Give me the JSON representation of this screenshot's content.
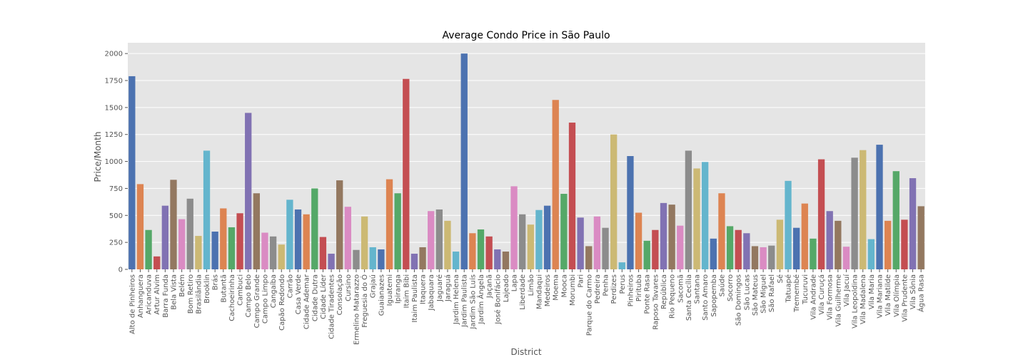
{
  "chart_data": {
    "type": "bar",
    "title": "Average Condo Price in São Paulo",
    "xlabel": "District",
    "ylabel": "Price/Month",
    "ylim": [
      0,
      2100
    ],
    "yticks": [
      0,
      250,
      500,
      750,
      1000,
      1250,
      1500,
      1750,
      2000
    ],
    "grid": true,
    "background": "#e5e5e5",
    "palette": [
      "#4c72b0",
      "#dd8452",
      "#55a868",
      "#c44e52",
      "#8172b3",
      "#937860",
      "#da8bc3",
      "#8c8c8c",
      "#ccb974",
      "#64b5cd"
    ],
    "categories": [
      "Alto de Pinheiros",
      "Anhanguera",
      "Aricanduva",
      "Artur Alvim",
      "Barra Funda",
      "Bela Vista",
      "Belém",
      "Bom Retiro",
      "Brasilândia",
      "Brooklin",
      "Brás",
      "Butantã",
      "Cachoeirinha",
      "Cambuci",
      "Campo Belo",
      "Campo Grande",
      "Campo Limpo",
      "Cangaíba",
      "Capão Redondo",
      "Carrão",
      "Casa Verde",
      "Cidade Ademar",
      "Cidade Dutra",
      "Cidade Líder",
      "Cidade Tiradentes",
      "Consolação",
      "Cursino",
      "Ermelino Matarazzo",
      "Freguesia do Ó",
      "Grajaú",
      "Guaianazes",
      "Iguatemi",
      "Ipiranga",
      "Itaim Bibi",
      "Itaim Paulista",
      "Itaquera",
      "Jabaquara",
      "Jaguaré",
      "Jaraguá",
      "Jardim Helena",
      "Jardim Paulista",
      "Jardim São Luís",
      "Jardim Ângela",
      "Jaçanã",
      "José Bonifácio",
      "Lajeado",
      "Lapa",
      "Liberdade",
      "Limão",
      "Mandaqui",
      "Medeiros",
      "Moema",
      "Mooca",
      "Morumbi",
      "Pari",
      "Parque do Carmo",
      "Pedreira",
      "Penha",
      "Perdizes",
      "Perus",
      "Pinheiros",
      "Pirituba",
      "Ponte Rasa",
      "Raposo Tavares",
      "República",
      "Rio Pequeno",
      "Sacomã",
      "Santa Cecília",
      "Santana",
      "Santo Amaro",
      "Sapopemba",
      "Saúde",
      "Socorro",
      "São Domingos",
      "São Lucas",
      "São Mateus",
      "São Miguel",
      "São Rafael",
      "Sé",
      "Tatuapé",
      "Tremembé",
      "Tucuruvi",
      "Vila Andrade",
      "Vila Curuçá",
      "Vila Formosa",
      "Vila Guilherme",
      "Vila Jacuí",
      "Vila Leopoldina",
      "Vila Madalena",
      "Vila Maria",
      "Vila Mariana",
      "Vila Matilde",
      "Vila Olímpia",
      "Vila Prudente",
      "Vila Sônia",
      "Água Rasa"
    ],
    "values": [
      1790,
      790,
      365,
      120,
      590,
      830,
      465,
      655,
      310,
      1100,
      350,
      565,
      390,
      520,
      1450,
      705,
      340,
      305,
      230,
      645,
      555,
      510,
      750,
      300,
      145,
      825,
      580,
      180,
      490,
      205,
      185,
      835,
      705,
      1765,
      145,
      205,
      540,
      555,
      450,
      165,
      2000,
      335,
      370,
      305,
      185,
      165,
      770,
      510,
      415,
      550,
      590,
      1570,
      700,
      1360,
      480,
      215,
      490,
      385,
      1250,
      65,
      1050,
      525,
      265,
      365,
      615,
      600,
      405,
      1100,
      935,
      995,
      285,
      705,
      400,
      365,
      335,
      215,
      205,
      220,
      460,
      820,
      385,
      610,
      285,
      1020,
      540,
      450,
      210,
      1035,
      1105,
      280,
      1155,
      450,
      910,
      460,
      845,
      585
    ]
  }
}
